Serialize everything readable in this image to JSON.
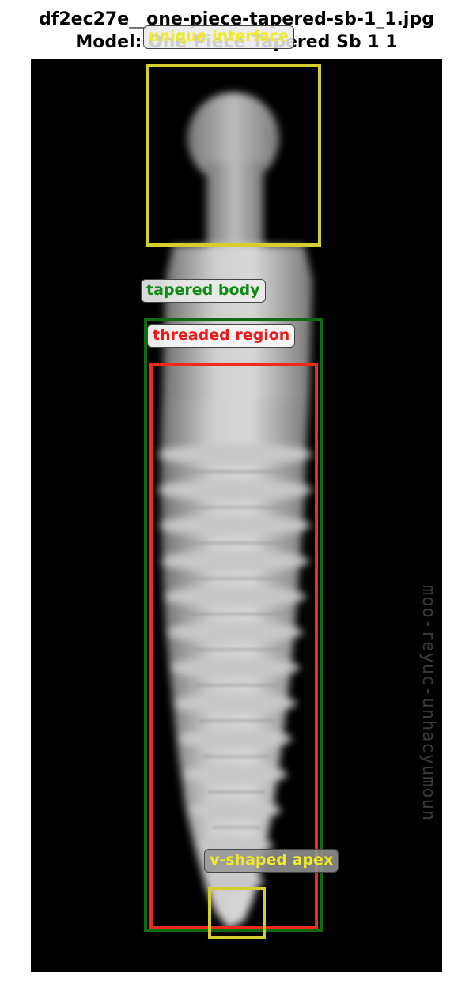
{
  "figure": {
    "title_line1": "df2ec27e__one-piece-tapered-sb-1_1.jpg",
    "title_line2": "Model: One Piece Tapered Sb 1 1"
  },
  "annotations": [
    {
      "label": "unique interface",
      "color": "#d4cf2e"
    },
    {
      "label": "tapered body",
      "color": "#0f8a12"
    },
    {
      "label": "threaded region",
      "color": "#ee1a1a"
    },
    {
      "label": "v-shaped apex",
      "color": "#f0ea2a"
    }
  ],
  "image": {
    "side_text": "moo-reyuc-unhacyumoun"
  }
}
